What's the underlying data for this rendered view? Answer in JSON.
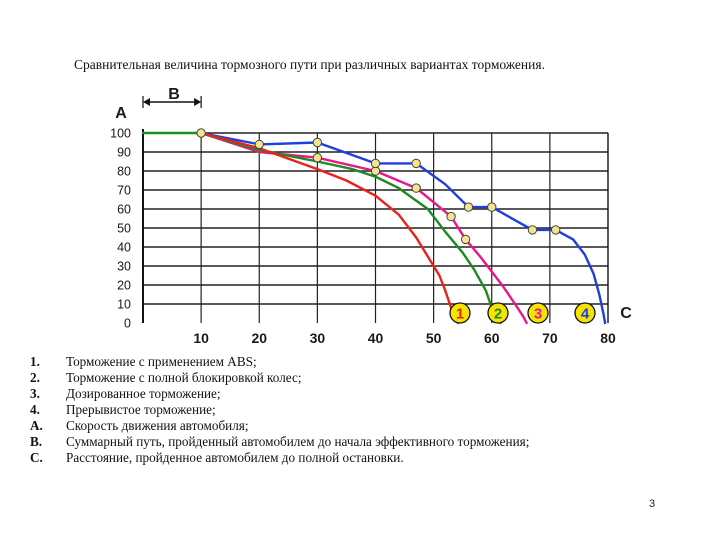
{
  "slide": {
    "title": "Сравнительная величина тормозного пути при различных вариантах торможения.",
    "page_number": "3"
  },
  "chart_data": {
    "type": "line",
    "title": "Сравнительная величина тормозного пути при различных вариантах торможения.",
    "ylabel": "A",
    "xlabel": "C",
    "interval_label": "B",
    "xlim": [
      0,
      80
    ],
    "ylim": [
      0,
      100
    ],
    "x_ticks": [
      "10",
      "20",
      "30",
      "40",
      "50",
      "60",
      "70",
      "80"
    ],
    "y_ticks": [
      "0",
      "10",
      "20",
      "30",
      "40",
      "50",
      "60",
      "70",
      "80",
      "90",
      "100"
    ],
    "grid": true,
    "series": [
      {
        "name": "1",
        "color": "#e8231b",
        "marker": false,
        "points": [
          [
            10,
            100
          ],
          [
            20,
            92
          ],
          [
            30,
            81
          ],
          [
            35,
            75
          ],
          [
            40,
            67
          ],
          [
            44,
            57
          ],
          [
            47,
            45
          ],
          [
            49,
            35
          ],
          [
            51,
            25
          ],
          [
            52,
            17
          ],
          [
            53,
            8
          ],
          [
            54.2,
            0
          ]
        ]
      },
      {
        "name": "2",
        "color": "#1f8a22",
        "marker": false,
        "points": [
          [
            0,
            100
          ],
          [
            10,
            100
          ],
          [
            20,
            91
          ],
          [
            30,
            85
          ],
          [
            36,
            81
          ],
          [
            40,
            77
          ],
          [
            44,
            71
          ],
          [
            49,
            60
          ],
          [
            52,
            48
          ],
          [
            55,
            37
          ],
          [
            57,
            28
          ],
          [
            59,
            17
          ],
          [
            60,
            8
          ],
          [
            61.5,
            0
          ]
        ]
      },
      {
        "name": "3",
        "color": "#e8178a",
        "marker": true,
        "points": [
          [
            10,
            100
          ],
          [
            20,
            90
          ],
          [
            30,
            87
          ],
          [
            40,
            80
          ],
          [
            47,
            71
          ],
          [
            53,
            56
          ],
          [
            55.5,
            44
          ],
          [
            58,
            35
          ],
          [
            60,
            27
          ],
          [
            62,
            19
          ],
          [
            64,
            10
          ],
          [
            65.5,
            3
          ],
          [
            66,
            0
          ]
        ]
      },
      {
        "name": "4",
        "color": "#1f3ee0",
        "marker": true,
        "points": [
          [
            10,
            100
          ],
          [
            20,
            94
          ],
          [
            30,
            95
          ],
          [
            40,
            84
          ],
          [
            47,
            84
          ],
          [
            52,
            73
          ],
          [
            56,
            61
          ],
          [
            60,
            61
          ],
          [
            67,
            49
          ],
          [
            71,
            49
          ],
          [
            74,
            44
          ],
          [
            76,
            36
          ],
          [
            77.5,
            26
          ],
          [
            78.5,
            15
          ],
          [
            79.2,
            5
          ],
          [
            79.5,
            0
          ]
        ]
      }
    ],
    "marker_points": [
      {
        "series": "3",
        "points": [
          [
            10,
            100
          ],
          [
            30,
            87
          ],
          [
            40,
            80
          ],
          [
            47,
            71
          ],
          [
            53,
            56
          ],
          [
            55.5,
            44
          ]
        ]
      },
      {
        "series": "4",
        "points": [
          [
            20,
            94
          ],
          [
            30,
            95
          ],
          [
            40,
            84
          ],
          [
            47,
            84
          ],
          [
            56,
            61
          ],
          [
            60,
            61
          ],
          [
            67,
            49
          ],
          [
            71,
            49
          ]
        ]
      }
    ]
  },
  "legend": [
    {
      "key": "1.",
      "text": "Торможение с применением ABS;"
    },
    {
      "key": "2.",
      "text": "Торможение с полной блокировкой колес;"
    },
    {
      "key": "3.",
      "text": "Дозированное торможение;"
    },
    {
      "key": "4.",
      "text": "Прерывистое торможение;"
    },
    {
      "key": "A.",
      "text": "Скорость движения автомобиля;"
    },
    {
      "key": "B.",
      "text": "Суммарный путь, пройденный автомобилем до начала эффективного торможения;"
    },
    {
      "key": "C.",
      "text": "Расстояние, пройденное автомобилем до полной остановки."
    }
  ]
}
